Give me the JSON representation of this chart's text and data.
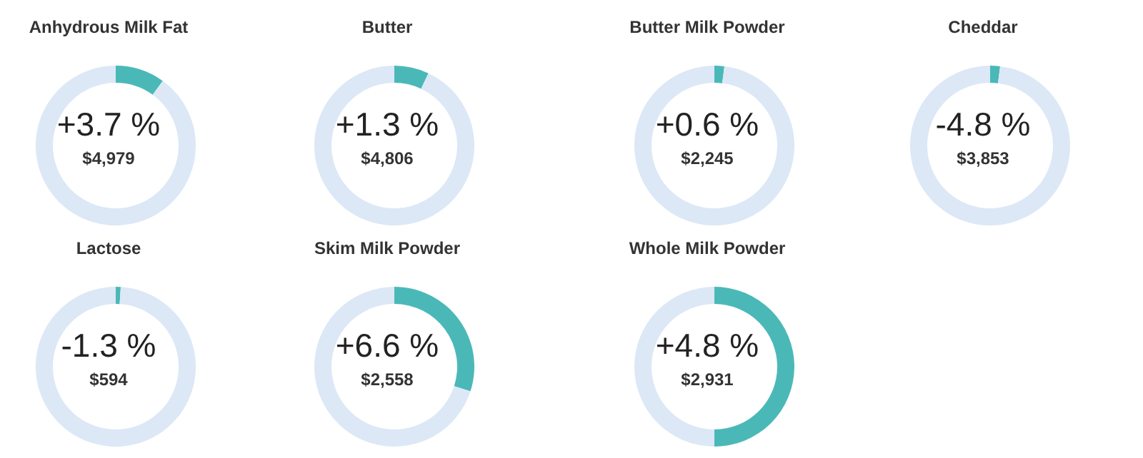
{
  "chart_data": [
    {
      "type": "donut",
      "title": "Anhydrous Milk Fat",
      "categories": [
        null,
        null
      ],
      "values": [
        10,
        90
      ],
      "colors": [
        "#4bb8b8",
        "#dce8f6"
      ],
      "annotations": [
        "+3.7 %",
        "$4,979"
      ]
    },
    {
      "type": "donut",
      "title": "Butter",
      "categories": [
        null,
        null
      ],
      "values": [
        7,
        93
      ],
      "colors": [
        "#4bb8b8",
        "#dce8f6"
      ],
      "annotations": [
        "+1.3 %",
        "$4,806"
      ]
    },
    {
      "type": "donut",
      "title": "Butter Milk Powder",
      "categories": [
        null,
        null
      ],
      "values": [
        2,
        98
      ],
      "colors": [
        "#4bb8b8",
        "#dce8f6"
      ],
      "annotations": [
        "+0.6 %",
        "$2,245"
      ]
    },
    {
      "type": "donut",
      "title": "Cheddar",
      "categories": [
        null,
        null
      ],
      "values": [
        2,
        98
      ],
      "colors": [
        "#4bb8b8",
        "#dce8f6"
      ],
      "annotations": [
        "-4.8 %",
        "$3,853"
      ]
    },
    {
      "type": "donut",
      "title": "Lactose",
      "categories": [
        null,
        null
      ],
      "values": [
        1,
        99
      ],
      "colors": [
        "#4bb8b8",
        "#dce8f6"
      ],
      "annotations": [
        "-1.3 %",
        "$594"
      ]
    },
    {
      "type": "donut",
      "title": "Skim Milk Powder",
      "categories": [
        null,
        null
      ],
      "values": [
        30,
        70
      ],
      "colors": [
        "#4bb8b8",
        "#dce8f6"
      ],
      "annotations": [
        "+6.6 %",
        "$2,558"
      ]
    },
    {
      "type": "donut",
      "title": "Whole Milk Powder",
      "categories": [
        null,
        null
      ],
      "values": [
        50,
        50
      ],
      "colors": [
        "#4bb8b8",
        "#dce8f6"
      ],
      "annotations": [
        "+4.8 %",
        "$2,931"
      ]
    }
  ]
}
